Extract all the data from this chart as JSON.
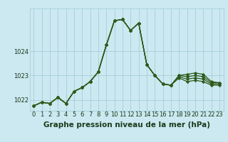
{
  "title": "Graphe pression niveau de la mer (hPa)",
  "bg_color": "#cce8f0",
  "line_color": "#2d5a1b",
  "grid_color": "#9ecad4",
  "text_color": "#1a3a1a",
  "xlim": [
    -0.5,
    23.5
  ],
  "ylim": [
    1021.55,
    1025.75
  ],
  "yticks": [
    1022,
    1023,
    1024
  ],
  "ytick_labels": [
    "1022",
    "1023",
    "1024"
  ],
  "xticks": [
    0,
    1,
    2,
    3,
    4,
    5,
    6,
    7,
    8,
    9,
    10,
    11,
    12,
    13,
    14,
    15,
    16,
    17,
    18,
    19,
    20,
    21,
    22,
    23
  ],
  "series": [
    [
      1021.75,
      1021.9,
      1021.85,
      1022.1,
      1021.85,
      1022.35,
      1022.5,
      1022.75,
      1023.15,
      1024.25,
      1025.25,
      1025.3,
      1024.85,
      1025.15,
      1023.45,
      1023.0,
      1022.65,
      1022.6,
      1023.0,
      1023.05,
      1023.1,
      1023.05,
      1022.75,
      1022.7
    ],
    [
      1021.75,
      1021.9,
      1021.85,
      1022.1,
      1021.85,
      1022.35,
      1022.5,
      1022.75,
      1023.15,
      1024.25,
      1025.25,
      1025.3,
      1024.85,
      1025.15,
      1023.45,
      1023.0,
      1022.65,
      1022.6,
      1023.0,
      1022.95,
      1023.0,
      1022.95,
      1022.7,
      1022.7
    ],
    [
      1021.75,
      1021.9,
      1021.85,
      1022.1,
      1021.85,
      1022.35,
      1022.5,
      1022.75,
      1023.15,
      1024.25,
      1025.25,
      1025.3,
      1024.85,
      1025.15,
      1023.45,
      1023.0,
      1022.65,
      1022.6,
      1022.95,
      1022.85,
      1022.9,
      1022.85,
      1022.65,
      1022.65
    ],
    [
      1021.75,
      1021.9,
      1021.85,
      1022.1,
      1021.85,
      1022.35,
      1022.5,
      1022.75,
      1023.15,
      1024.25,
      1025.25,
      1025.3,
      1024.85,
      1025.15,
      1023.45,
      1023.0,
      1022.65,
      1022.6,
      1022.9,
      1022.75,
      1022.8,
      1022.75,
      1022.6,
      1022.6
    ]
  ],
  "marker": "D",
  "markersize": 2.2,
  "linewidth": 0.9,
  "xlabel_fontsize": 7.5,
  "tick_fontsize": 6.0,
  "figsize": [
    3.2,
    2.0
  ],
  "dpi": 100
}
